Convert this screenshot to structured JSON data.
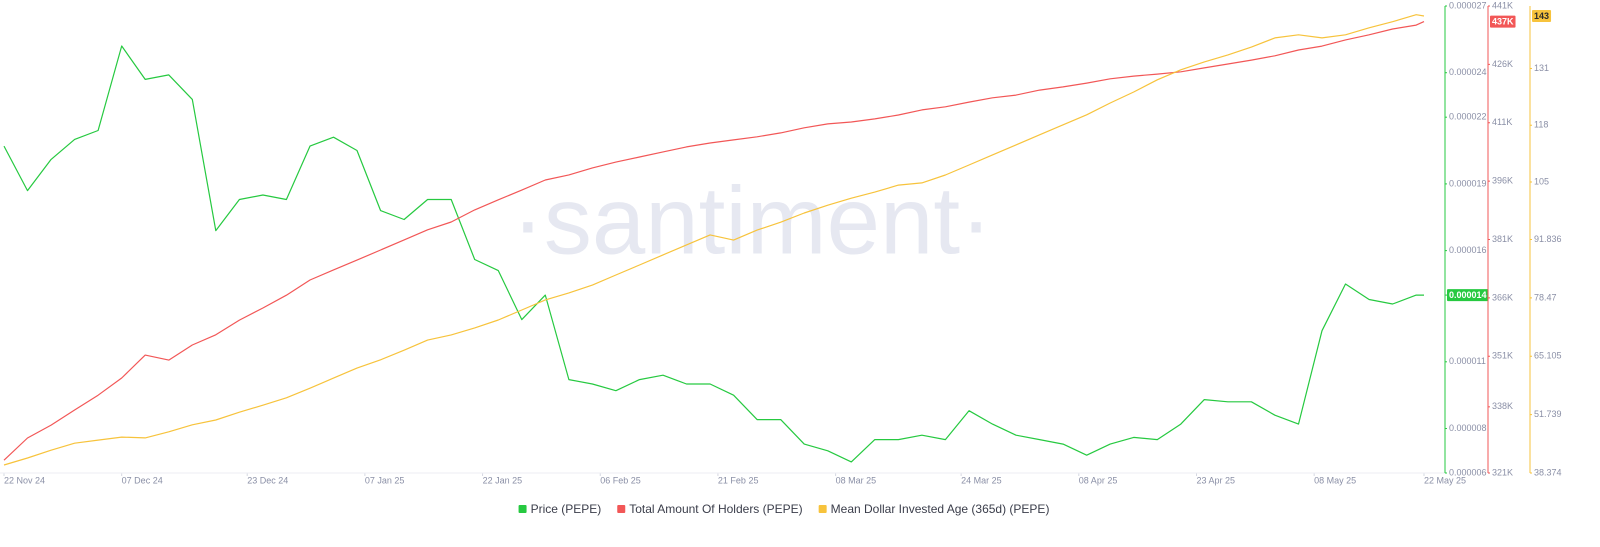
{
  "chart_data": {
    "type": "line",
    "watermark": "·santiment·",
    "x": [
      "2024-11-22",
      "2024-11-25",
      "2024-11-28",
      "2024-12-01",
      "2024-12-04",
      "2024-12-07",
      "2024-12-10",
      "2024-12-13",
      "2024-12-16",
      "2024-12-19",
      "2024-12-22",
      "2024-12-25",
      "2024-12-28",
      "2024-12-31",
      "2025-01-03",
      "2025-01-06",
      "2025-01-09",
      "2025-01-12",
      "2025-01-15",
      "2025-01-18",
      "2025-01-21",
      "2025-01-24",
      "2025-01-27",
      "2025-01-30",
      "2025-02-02",
      "2025-02-05",
      "2025-02-08",
      "2025-02-11",
      "2025-02-14",
      "2025-02-17",
      "2025-02-20",
      "2025-02-23",
      "2025-02-26",
      "2025-03-01",
      "2025-03-04",
      "2025-03-07",
      "2025-03-10",
      "2025-03-13",
      "2025-03-16",
      "2025-03-19",
      "2025-03-22",
      "2025-03-25",
      "2025-03-28",
      "2025-03-31",
      "2025-04-03",
      "2025-04-06",
      "2025-04-09",
      "2025-04-12",
      "2025-04-15",
      "2025-04-18",
      "2025-04-21",
      "2025-04-24",
      "2025-04-27",
      "2025-04-30",
      "2025-05-03",
      "2025-05-06",
      "2025-05-09",
      "2025-05-12",
      "2025-05-15",
      "2025-05-18",
      "2025-05-21",
      "2025-05-22"
    ],
    "xlim": [
      "2024-11-22",
      "2025-05-22"
    ],
    "xticks": [
      {
        "value": "2024-11-22",
        "label": "22 Nov 24"
      },
      {
        "value": "2024-12-07",
        "label": "07 Dec 24"
      },
      {
        "value": "2024-12-23",
        "label": "23 Dec 24"
      },
      {
        "value": "2025-01-07",
        "label": "07 Jan 25"
      },
      {
        "value": "2025-01-22",
        "label": "22 Jan 25"
      },
      {
        "value": "2025-02-06",
        "label": "06 Feb 25"
      },
      {
        "value": "2025-02-21",
        "label": "21 Feb 25"
      },
      {
        "value": "2025-03-08",
        "label": "08 Mar 25"
      },
      {
        "value": "2025-03-24",
        "label": "24 Mar 25"
      },
      {
        "value": "2025-04-08",
        "label": "08 Apr 25"
      },
      {
        "value": "2025-04-23",
        "label": "23 Apr 25"
      },
      {
        "value": "2025-05-08",
        "label": "08 May 25"
      },
      {
        "value": "2025-05-22",
        "label": "22 May 25"
      }
    ],
    "ylim": [
      6e-06,
      2.7e-05
    ],
    "yticks": [
      6e-06,
      8e-06,
      1.1e-05,
      1.4e-05,
      1.6e-05,
      1.9e-05,
      2.2e-05,
      2.4e-05,
      2.7e-05
    ],
    "y2lim": [
      321000,
      441000
    ],
    "y2ticks": [
      {
        "value": 321000,
        "label": "321K"
      },
      {
        "value": 338000,
        "label": "338K"
      },
      {
        "value": 351000,
        "label": "351K"
      },
      {
        "value": 366000,
        "label": "366K"
      },
      {
        "value": 381000,
        "label": "381K"
      },
      {
        "value": 396000,
        "label": "396K"
      },
      {
        "value": 411000,
        "label": "411K"
      },
      {
        "value": 426000,
        "label": "426K"
      },
      {
        "value": 441000,
        "label": "441K"
      }
    ],
    "y3lim": [
      38.374,
      145.3
    ],
    "y3ticks": [
      38.374,
      51.739,
      65.105,
      78.47,
      91.836,
      105,
      118,
      131
    ],
    "series": [
      {
        "name": "Price (PEPE)",
        "color": "#26c940",
        "axis": "y",
        "last_label": "0.000014",
        "values": [
          2.07e-05,
          1.87e-05,
          2.01e-05,
          2.1e-05,
          2.14e-05,
          2.52e-05,
          2.37e-05,
          2.39e-05,
          2.28e-05,
          1.69e-05,
          1.83e-05,
          1.85e-05,
          1.83e-05,
          2.07e-05,
          2.11e-05,
          2.05e-05,
          1.78e-05,
          1.74e-05,
          1.83e-05,
          1.83e-05,
          1.56e-05,
          1.51e-05,
          1.29e-05,
          1.4e-05,
          1.02e-05,
          1e-05,
          9.7e-06,
          1.02e-05,
          1.04e-05,
          1e-05,
          1e-05,
          9.5e-06,
          8.4e-06,
          8.4e-06,
          7.3e-06,
          7e-06,
          6.5e-06,
          7.5e-06,
          7.5e-06,
          7.7e-06,
          7.5e-06,
          8.8e-06,
          8.2e-06,
          7.7e-06,
          7.5e-06,
          7.3e-06,
          6.8e-06,
          7.3e-06,
          7.6e-06,
          7.5e-06,
          8.2e-06,
          9.3e-06,
          9.2e-06,
          9.2e-06,
          8.6e-06,
          8.2e-06,
          1.24e-05,
          1.45e-05,
          1.38e-05,
          1.36e-05,
          1.4e-05,
          1.4e-05
        ]
      },
      {
        "name": "Total Amount Of Holders (PEPE)",
        "color": "#f25757",
        "axis": "y2",
        "last_label": "437K",
        "values": [
          324300,
          330000,
          333300,
          337200,
          341000,
          345400,
          351300,
          350000,
          353900,
          356500,
          360300,
          363400,
          366700,
          370600,
          373200,
          375700,
          378300,
          380900,
          383500,
          385500,
          388600,
          391200,
          393700,
          396300,
          397600,
          399400,
          400900,
          402200,
          403500,
          404800,
          405800,
          406600,
          407400,
          408400,
          409700,
          410700,
          411200,
          412000,
          413000,
          414300,
          415100,
          416300,
          417400,
          418100,
          419400,
          420200,
          421200,
          422300,
          423000,
          423500,
          424100,
          425100,
          426100,
          427100,
          428200,
          429700,
          430700,
          432300,
          433600,
          435100,
          436100,
          437000
        ]
      },
      {
        "name": "Mean Dollar Invested Age (365d) (PEPE)",
        "color": "#f7c33c",
        "axis": "y3",
        "last_label": "143",
        "values": [
          40.2,
          41.8,
          43.6,
          45.2,
          45.9,
          46.6,
          46.4,
          47.8,
          49.4,
          50.5,
          52.3,
          53.9,
          55.6,
          57.8,
          60.1,
          62.4,
          64.3,
          66.5,
          68.8,
          70,
          71.6,
          73.4,
          75.7,
          78,
          79.6,
          81.4,
          83.7,
          86,
          88.3,
          90.6,
          92.9,
          91.7,
          94,
          95.8,
          97.9,
          99.7,
          101.3,
          102.7,
          104.3,
          104.8,
          106.6,
          108.9,
          111.2,
          113.5,
          115.8,
          118.1,
          120.4,
          123.1,
          125.6,
          128.4,
          130.7,
          132.5,
          134.1,
          135.9,
          138,
          138.7,
          138,
          138.7,
          140.3,
          141.7,
          143.3,
          143
        ]
      }
    ]
  }
}
